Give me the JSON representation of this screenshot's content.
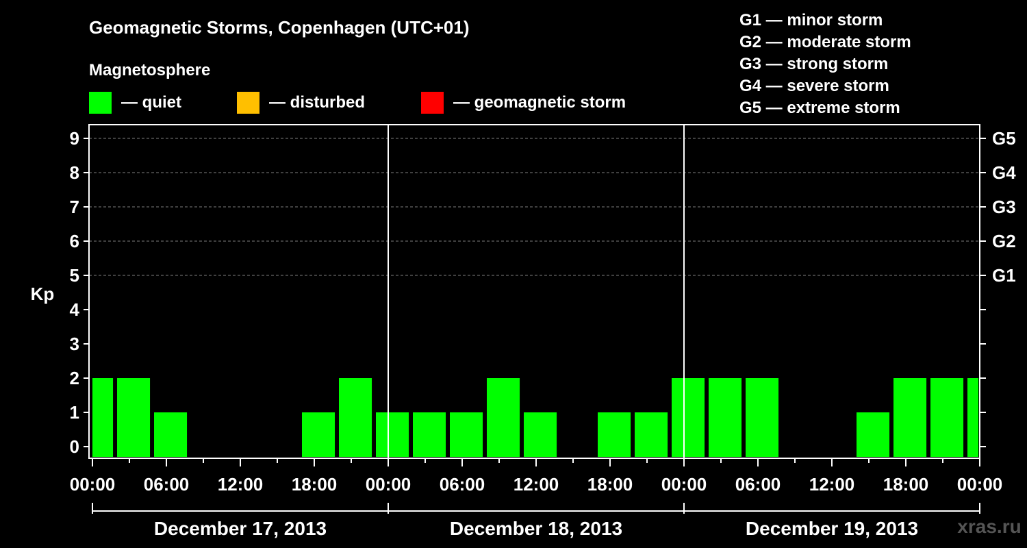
{
  "chart_data": {
    "type": "bar",
    "title": "Geomagnetic Storms, Copenhagen (UTC+01)",
    "ylabel": "Kp",
    "ylim": [
      0,
      9
    ],
    "y_ticks": [
      "0",
      "1",
      "2",
      "3",
      "4",
      "5",
      "6",
      "7",
      "8",
      "9"
    ],
    "right_ticks": [
      {
        "kp": 5,
        "label": "G1"
      },
      {
        "kp": 6,
        "label": "G2"
      },
      {
        "kp": 7,
        "label": "G3"
      },
      {
        "kp": 8,
        "label": "G4"
      },
      {
        "kp": 9,
        "label": "G5"
      }
    ],
    "x_tick_labels": [
      "00:00",
      "06:00",
      "12:00",
      "18:00",
      "00:00",
      "06:00",
      "12:00",
      "18:00",
      "00:00",
      "06:00",
      "12:00",
      "18:00",
      "00:00"
    ],
    "x_tick_hours": [
      0,
      6,
      12,
      18,
      24,
      30,
      36,
      42,
      48,
      54,
      60,
      66,
      72
    ],
    "days": [
      "December 17, 2013",
      "December 18, 2013",
      "December 19, 2013"
    ],
    "bar_interval_hours": 3,
    "series": [
      {
        "name": "Kp",
        "values": [
          2,
          2,
          1,
          0,
          0,
          0,
          1,
          2,
          1,
          1,
          1,
          2,
          1,
          0,
          1,
          1,
          2,
          2,
          2,
          0,
          0,
          1,
          2,
          2,
          2
        ]
      }
    ],
    "bar_start_hours": [
      -1,
      2,
      5,
      8,
      11,
      14,
      17,
      20,
      23,
      26,
      29,
      32,
      35,
      38,
      41,
      44,
      47,
      50,
      53,
      56,
      59,
      62,
      65,
      68,
      71
    ],
    "magnetosphere": {
      "heading": "Magnetosphere",
      "items": [
        {
          "label": "— quiet",
          "color": "#00ff00"
        },
        {
          "label": "— disturbed",
          "color": "#ffbf00"
        },
        {
          "label": "— geomagnetic storm",
          "color": "#ff0000"
        }
      ]
    },
    "storm_scale": [
      "G1 — minor storm",
      "G2 — moderate storm",
      "G3 — strong storm",
      "G4 — severe storm",
      "G5 — extreme storm"
    ],
    "grid": true
  },
  "watermark": "xras.ru",
  "colors": {
    "background": "#000000",
    "foreground": "#ffffff",
    "grid": "#808080"
  }
}
